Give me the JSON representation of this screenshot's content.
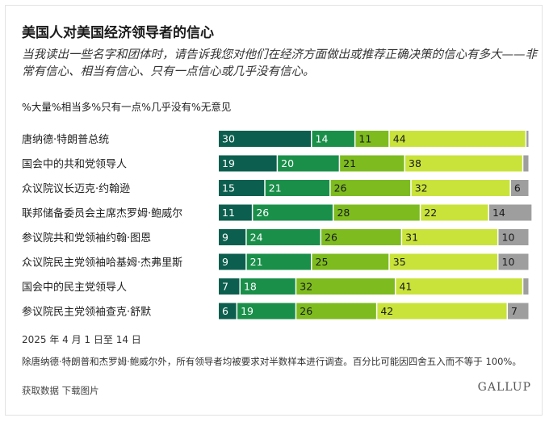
{
  "header": {
    "title": "美国人对美国经济领导者的信心",
    "subtitle": "当我读出一些名字和团体时，请告诉我您对他们在经济方面做出或推荐正确决策的信心有多大——非常有信心、相当有信心、只有一点信心或几乎没有信心。"
  },
  "legend_text": "%大量%相当多%只有一点%几乎没有%无意见",
  "chart_data": {
    "type": "bar",
    "orientation": "horizontal",
    "stacked": true,
    "categories": [
      "唐纳德·特朗普总统",
      "国会中的共和党领导人",
      "众议院议长迈克·约翰逊",
      "联邦储备委员会主席杰罗姆·鲍威尔",
      "参议院共和党领袖约翰·图恩",
      "众议院民主党领袖哈基姆·杰弗里斯",
      "国会中的民主党领导人",
      "参议院民主党领袖查克·舒默"
    ],
    "series": [
      {
        "name": "大量",
        "color": "#0c5f4e",
        "values": [
          30,
          19,
          15,
          11,
          9,
          9,
          7,
          6
        ]
      },
      {
        "name": "相当多",
        "color": "#1a8f4a",
        "values": [
          14,
          20,
          21,
          26,
          24,
          21,
          18,
          19
        ]
      },
      {
        "name": "只有一点",
        "color": "#7dbb1f",
        "values": [
          11,
          21,
          26,
          28,
          26,
          25,
          32,
          26
        ]
      },
      {
        "name": "几乎没有",
        "color": "#c9e33a",
        "values": [
          44,
          38,
          32,
          22,
          31,
          35,
          41,
          42
        ]
      },
      {
        "name": "无意见",
        "color": "#9e9e9e",
        "values": [
          1,
          2,
          6,
          14,
          10,
          10,
          2,
          7
        ]
      }
    ],
    "data_labels": [
      [
        "30",
        "14",
        "11",
        "44",
        ""
      ],
      [
        "19",
        "20",
        "21",
        "38",
        ""
      ],
      [
        "15",
        "21",
        "26",
        "32",
        "6"
      ],
      [
        "11",
        "26",
        "28",
        "22",
        "14"
      ],
      [
        "9",
        "24",
        "26",
        "31",
        "10"
      ],
      [
        "9",
        "21",
        "25",
        "35",
        "10"
      ],
      [
        "7",
        "18",
        "32",
        "41",
        ""
      ],
      [
        "6",
        "19",
        "26",
        "42",
        "7"
      ]
    ],
    "xlim": [
      0,
      100
    ]
  },
  "footer": {
    "date": "2025 年 4 月 1 日至 14 日",
    "note": "除唐纳德·特朗普和杰罗姆·鲍威尔外，所有领导者均被要求对半数样本进行调查。百分比可能因四舍五入而不等于 100%。",
    "link_data": "获取数据",
    "link_image": "下载图片",
    "brand": "GALLUP"
  }
}
